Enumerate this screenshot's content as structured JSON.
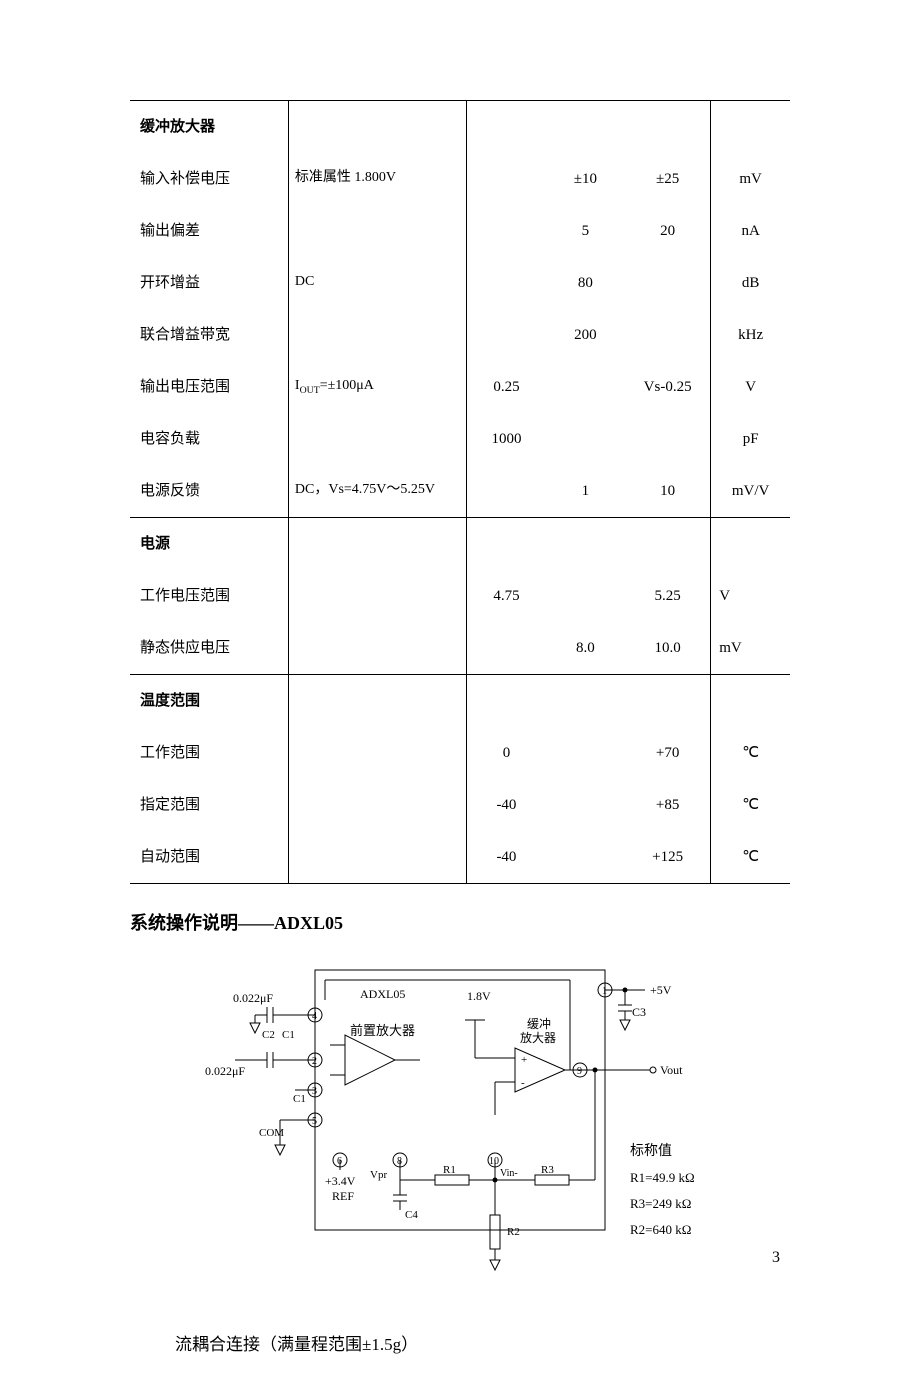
{
  "table": {
    "sections": [
      {
        "header": "缓冲放大器",
        "rows": [
          {
            "k": "输入补偿电压",
            "cond": "标准属性 1.800V",
            "min": "",
            "typ": "±10",
            "max": "±25",
            "unit": "mV"
          },
          {
            "k": "输出偏差",
            "cond": "",
            "min": "",
            "typ": "5",
            "max": "20",
            "unit": "nA"
          },
          {
            "k": "开环增益",
            "cond": "DC",
            "min": "",
            "typ": "80",
            "max": "",
            "unit": "dB"
          },
          {
            "k": "联合增益带宽",
            "cond": "",
            "min": "",
            "typ": "200",
            "max": "",
            "unit": "kHz"
          },
          {
            "k": "输出电压范围",
            "cond": "I_OUT=±100μA",
            "min": "0.25",
            "typ": "",
            "max": "Vs-0.25",
            "unit": "V"
          },
          {
            "k": "电容负载",
            "cond": "",
            "min": "1000",
            "typ": "",
            "max": "",
            "unit": "pF"
          },
          {
            "k": "电源反馈",
            "cond": "DC，Vs=4.75V～5.25V",
            "min": "",
            "typ": "1",
            "max": "10",
            "unit": "mV/V"
          }
        ]
      },
      {
        "header": "电源",
        "rows": [
          {
            "k": "工作电压范围",
            "cond": "",
            "min": "4.75",
            "typ": "",
            "max": "5.25",
            "unit": "V",
            "unit_left": true
          },
          {
            "k": "静态供应电压",
            "cond": "",
            "min": "",
            "typ": "8.0",
            "max": "10.0",
            "unit": "mV",
            "unit_left": true
          }
        ]
      },
      {
        "header": "温度范围",
        "rows": [
          {
            "k": "工作范围",
            "cond": "",
            "min": "0",
            "typ": "",
            "max": "+70",
            "unit": "℃"
          },
          {
            "k": "指定范围",
            "cond": "",
            "min": "-40",
            "typ": "",
            "max": "+85",
            "unit": "℃"
          },
          {
            "k": "自动范围",
            "cond": "",
            "min": "-40",
            "typ": "",
            "max": "+125",
            "unit": "℃"
          }
        ]
      }
    ]
  },
  "heading": "系统操作说明——ADXL05",
  "caption": "流耦合连接（满量程范围±1.5g）",
  "page_num": "3",
  "diagram": {
    "labels": {
      "c022_1": "0.022μF",
      "c022_2": "0.022μF",
      "adxl": "ADXL05",
      "preamp": "前置放大器",
      "v18": "1.8V",
      "buf1": "缓冲",
      "buf2": "放大器",
      "vout": "Vout",
      "p5v": "+5V",
      "c3": "C3",
      "c2": "C2",
      "c1a": "C1",
      "c1b": "C1",
      "com": "COM",
      "p34v": "+3.4V",
      "ref": "REF",
      "vpr": "Vpr",
      "c4": "C4",
      "r1": "R1",
      "r2": "R2",
      "r3": "R3",
      "vinm": "Vin-",
      "nom_title": "标称值",
      "nom_r1": "R1=49.9 kΩ",
      "nom_r3": "R3=249  kΩ",
      "nom_r2": "R2=640  kΩ",
      "p1": "1",
      "p2": "2",
      "p3": "3",
      "p4": "4",
      "p5": "5",
      "p6": "6",
      "p8": "8",
      "p9": "9",
      "p10": "10"
    },
    "style": {
      "stroke": "#000000",
      "stroke_width": 1,
      "font": "SimSun",
      "font_size": 12,
      "font_size_small": 11
    }
  }
}
